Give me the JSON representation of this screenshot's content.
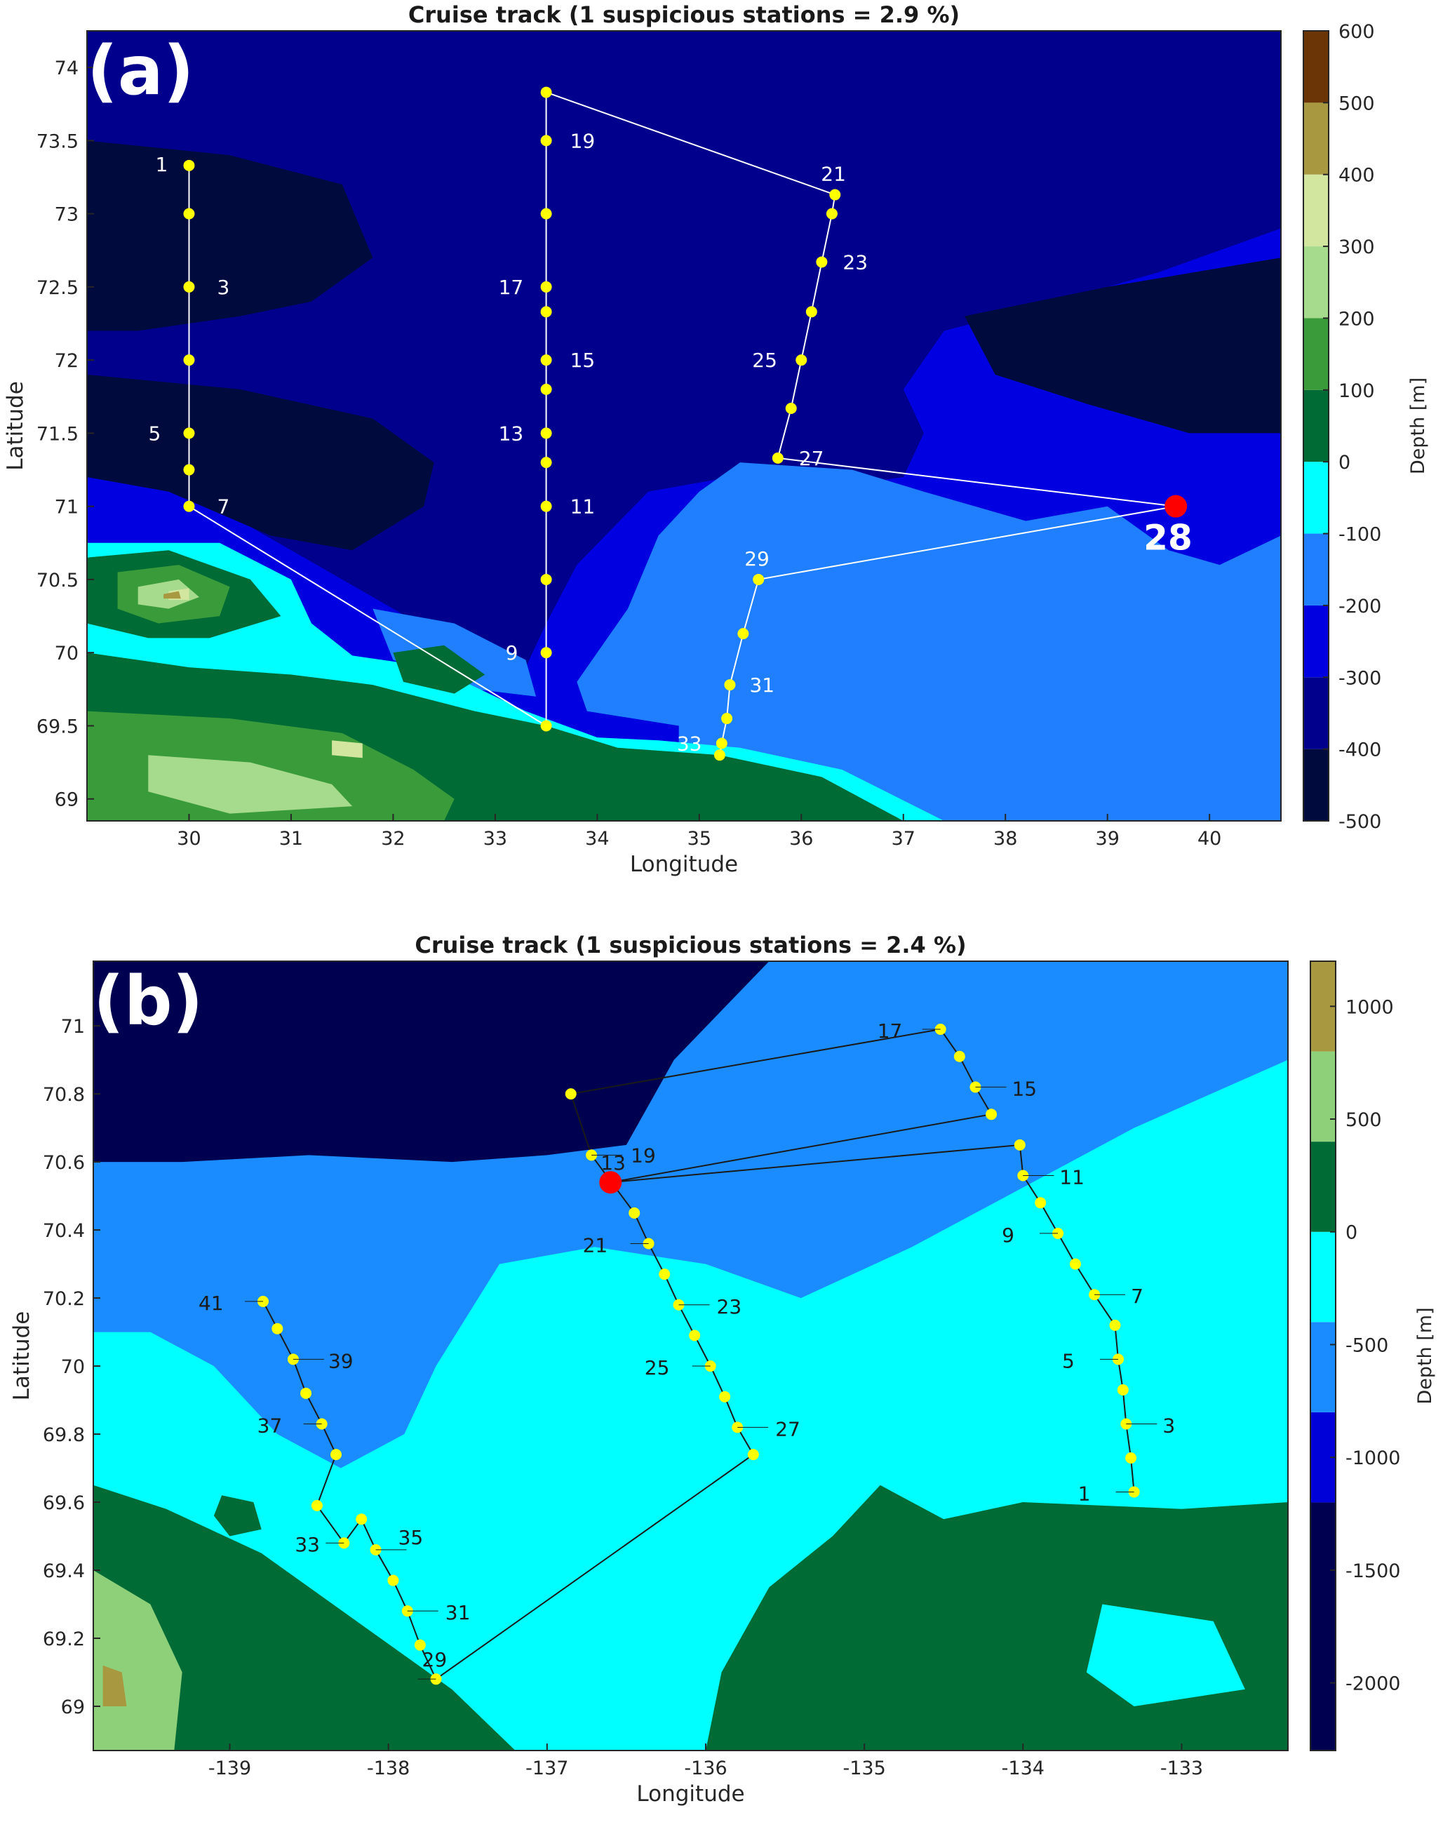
{
  "chart_data": [
    {
      "type": "scatter",
      "panel_label": "(a)",
      "title": "Cruise track (1 suspicious stations = 2.9 %)",
      "xlabel": "Longitude",
      "ylabel": "Latitude",
      "xlim": [
        29.0,
        40.7
      ],
      "ylim": [
        68.85,
        74.25
      ],
      "xticks": [
        30,
        31,
        32,
        33,
        34,
        35,
        36,
        37,
        38,
        39,
        40
      ],
      "yticks": [
        69,
        69.5,
        70,
        70.5,
        71,
        71.5,
        72,
        72.5,
        73,
        73.5,
        74
      ],
      "track_color": "#ffffff",
      "station_color": "#ffff00",
      "suspicious_color": "#ff0000",
      "label_color": "#ffffff",
      "colorbar": {
        "label": "Depth [m]",
        "ticks": [
          -500,
          -400,
          -300,
          -200,
          -100,
          0,
          100,
          200,
          300,
          400,
          500,
          600
        ],
        "levels": [
          -500,
          -400,
          -300,
          -200,
          -100,
          0,
          100,
          200,
          300,
          400,
          500,
          600
        ],
        "colors": [
          "#000a3c",
          "#00008c",
          "#0000e0",
          "#1f7fff",
          "#00ffff",
          "#006b35",
          "#3a9b3a",
          "#a6da8c",
          "#d2e6a0",
          "#a89840",
          "#6b3505"
        ]
      },
      "stations": [
        {
          "lon": 30.0,
          "lat": 73.33,
          "label": "1"
        },
        {
          "lon": 30.0,
          "lat": 73.0,
          "label": ""
        },
        {
          "lon": 30.0,
          "lat": 72.5,
          "label": "3"
        },
        {
          "lon": 30.0,
          "lat": 72.0,
          "label": ""
        },
        {
          "lon": 30.0,
          "lat": 71.5,
          "label": "5"
        },
        {
          "lon": 30.0,
          "lat": 71.25,
          "label": ""
        },
        {
          "lon": 30.0,
          "lat": 71.0,
          "label": "7"
        },
        {
          "lon": 33.5,
          "lat": 69.5,
          "label": ""
        },
        {
          "lon": 33.5,
          "lat": 70.0,
          "label": "9"
        },
        {
          "lon": 33.5,
          "lat": 70.5,
          "label": ""
        },
        {
          "lon": 33.5,
          "lat": 71.0,
          "label": "11"
        },
        {
          "lon": 33.5,
          "lat": 71.3,
          "label": ""
        },
        {
          "lon": 33.5,
          "lat": 71.5,
          "label": "13"
        },
        {
          "lon": 33.5,
          "lat": 71.8,
          "label": ""
        },
        {
          "lon": 33.5,
          "lat": 72.0,
          "label": "15"
        },
        {
          "lon": 33.5,
          "lat": 72.33,
          "label": ""
        },
        {
          "lon": 33.5,
          "lat": 72.5,
          "label": "17"
        },
        {
          "lon": 33.5,
          "lat": 73.0,
          "label": ""
        },
        {
          "lon": 33.5,
          "lat": 73.5,
          "label": "19"
        },
        {
          "lon": 33.5,
          "lat": 73.83,
          "label": ""
        },
        {
          "lon": 36.33,
          "lat": 73.13,
          "label": "21"
        },
        {
          "lon": 36.3,
          "lat": 73.0,
          "label": ""
        },
        {
          "lon": 36.2,
          "lat": 72.67,
          "label": "23"
        },
        {
          "lon": 36.1,
          "lat": 72.33,
          "label": ""
        },
        {
          "lon": 36.0,
          "lat": 72.0,
          "label": "25"
        },
        {
          "lon": 35.9,
          "lat": 71.67,
          "label": ""
        },
        {
          "lon": 35.77,
          "lat": 71.33,
          "label": "27"
        },
        {
          "lon": 39.67,
          "lat": 71.0,
          "label": "28",
          "suspicious": true
        },
        {
          "lon": 35.58,
          "lat": 70.5,
          "label": "29"
        },
        {
          "lon": 35.43,
          "lat": 70.13,
          "label": ""
        },
        {
          "lon": 35.3,
          "lat": 69.78,
          "label": "31"
        },
        {
          "lon": 35.27,
          "lat": 69.55,
          "label": ""
        },
        {
          "lon": 35.22,
          "lat": 69.38,
          "label": "33"
        },
        {
          "lon": 35.2,
          "lat": 69.3,
          "label": ""
        }
      ]
    },
    {
      "type": "scatter",
      "panel_label": "(b)",
      "title": "Cruise track (1 suspicious stations = 2.4 %)",
      "xlabel": "Longitude",
      "ylabel": "Latitude",
      "xlim": [
        -139.86,
        -132.33
      ],
      "ylim": [
        68.87,
        71.19
      ],
      "xticks": [
        -139,
        -138,
        -137,
        -136,
        -135,
        -134,
        -133
      ],
      "yticks": [
        69,
        69.2,
        69.4,
        69.6,
        69.8,
        70,
        70.2,
        70.4,
        70.6,
        70.8,
        71
      ],
      "track_color": "#1a1a1a",
      "station_color": "#ffff00",
      "suspicious_color": "#ff0000",
      "label_color": "#1a1a1a",
      "colorbar": {
        "label": "Depth [m]",
        "ticks": [
          -2000,
          -1500,
          -1000,
          -500,
          0,
          500,
          1000
        ],
        "levels": [
          -2300,
          -1200,
          -800,
          -400,
          0,
          400,
          800,
          1200
        ],
        "colors": [
          "#000050",
          "#0000d8",
          "#1a8cff",
          "#00ffff",
          "#006b35",
          "#8ed07a",
          "#a89840"
        ]
      },
      "stations": [
        {
          "lon": -133.3,
          "lat": 69.63,
          "label": "1"
        },
        {
          "lon": -133.32,
          "lat": 69.73,
          "label": ""
        },
        {
          "lon": -133.35,
          "lat": 69.83,
          "label": "3"
        },
        {
          "lon": -133.37,
          "lat": 69.93,
          "label": ""
        },
        {
          "lon": -133.4,
          "lat": 70.02,
          "label": "5"
        },
        {
          "lon": -133.42,
          "lat": 70.12,
          "label": ""
        },
        {
          "lon": -133.55,
          "lat": 70.21,
          "label": "7"
        },
        {
          "lon": -133.67,
          "lat": 70.3,
          "label": ""
        },
        {
          "lon": -133.78,
          "lat": 70.39,
          "label": "9"
        },
        {
          "lon": -133.89,
          "lat": 70.48,
          "label": ""
        },
        {
          "lon": -134.0,
          "lat": 70.56,
          "label": "11"
        },
        {
          "lon": -134.02,
          "lat": 70.65,
          "label": ""
        },
        {
          "lon": -136.6,
          "lat": 70.54,
          "label": "13",
          "suspicious": true
        },
        {
          "lon": -134.2,
          "lat": 70.74,
          "label": ""
        },
        {
          "lon": -134.3,
          "lat": 70.82,
          "label": "15"
        },
        {
          "lon": -134.4,
          "lat": 70.91,
          "label": ""
        },
        {
          "lon": -134.52,
          "lat": 70.99,
          "label": "17"
        },
        {
          "lon": -136.85,
          "lat": 70.8,
          "label": ""
        },
        {
          "lon": -136.72,
          "lat": 70.62,
          "label": "19"
        },
        {
          "lon": -136.45,
          "lat": 70.45,
          "label": ""
        },
        {
          "lon": -136.36,
          "lat": 70.36,
          "label": "21"
        },
        {
          "lon": -136.26,
          "lat": 70.27,
          "label": ""
        },
        {
          "lon": -136.17,
          "lat": 70.18,
          "label": "23"
        },
        {
          "lon": -136.07,
          "lat": 70.09,
          "label": ""
        },
        {
          "lon": -135.97,
          "lat": 70.0,
          "label": "25"
        },
        {
          "lon": -135.88,
          "lat": 69.91,
          "label": ""
        },
        {
          "lon": -135.8,
          "lat": 69.82,
          "label": "27"
        },
        {
          "lon": -135.7,
          "lat": 69.74,
          "label": ""
        },
        {
          "lon": -137.7,
          "lat": 69.08,
          "label": "29"
        },
        {
          "lon": -137.8,
          "lat": 69.18,
          "label": ""
        },
        {
          "lon": -137.88,
          "lat": 69.28,
          "label": "31"
        },
        {
          "lon": -137.97,
          "lat": 69.37,
          "label": ""
        },
        {
          "lon": -138.08,
          "lat": 69.46,
          "label": "35"
        },
        {
          "lon": -138.17,
          "lat": 69.55,
          "label": ""
        },
        {
          "lon": -138.28,
          "lat": 69.48,
          "label": "33"
        },
        {
          "lon": -138.45,
          "lat": 69.59,
          "label": ""
        },
        {
          "lon": -138.33,
          "lat": 69.74,
          "label": ""
        },
        {
          "lon": -138.42,
          "lat": 69.83,
          "label": "37"
        },
        {
          "lon": -138.52,
          "lat": 69.92,
          "label": ""
        },
        {
          "lon": -138.6,
          "lat": 70.02,
          "label": "39"
        },
        {
          "lon": -138.7,
          "lat": 70.11,
          "label": ""
        },
        {
          "lon": -138.79,
          "lat": 70.19,
          "label": "41"
        }
      ]
    }
  ]
}
